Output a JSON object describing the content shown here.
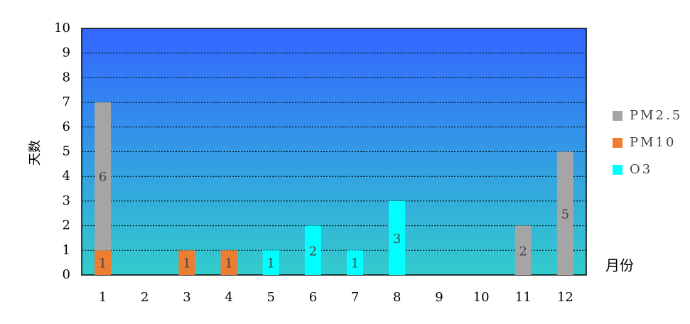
{
  "chart_data": {
    "type": "stacked_bar",
    "y_label": "天数",
    "x_label": "月份",
    "categories": [
      "1",
      "2",
      "3",
      "4",
      "5",
      "6",
      "7",
      "8",
      "9",
      "10",
      "11",
      "12"
    ],
    "series": [
      {
        "name": "O3",
        "color": "#00ffff",
        "values": [
          null,
          null,
          null,
          null,
          1,
          2,
          1,
          3,
          null,
          null,
          null,
          null
        ]
      },
      {
        "name": "PM10",
        "color": "#ed7d31",
        "values": [
          1,
          null,
          1,
          1,
          null,
          null,
          null,
          null,
          null,
          null,
          null,
          null
        ]
      },
      {
        "name": "PM2.5",
        "color": "#a5a5a5",
        "values": [
          6,
          null,
          null,
          null,
          null,
          null,
          null,
          null,
          null,
          null,
          2,
          5
        ]
      }
    ],
    "ylim": [
      0,
      10
    ],
    "yticks": [
      0,
      1,
      2,
      3,
      4,
      5,
      6,
      7,
      8,
      9,
      10
    ],
    "grid": true
  }
}
